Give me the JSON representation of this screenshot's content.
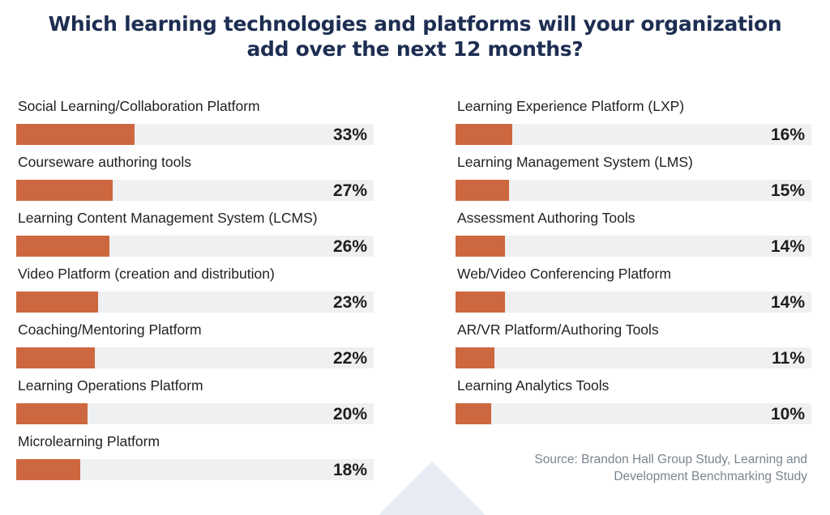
{
  "title": {
    "line1": "Which learning technologies and platforms will your organization",
    "line2": "add over the next 12 months?"
  },
  "colors": {
    "bar": "#cd673f",
    "track": "#eff0f2",
    "title": "#1d2e52",
    "source": "#7a858e"
  },
  "left": [
    {
      "label": "Social Learning/Collaboration Platform",
      "value": 33,
      "pct": "33%"
    },
    {
      "label": "Courseware authoring tools",
      "value": 27,
      "pct": "27%"
    },
    {
      "label": "Learning Content Management System (LCMS)",
      "value": 26,
      "pct": "26%"
    },
    {
      "label": "Video Platform (creation and distribution)",
      "value": 23,
      "pct": "23%"
    },
    {
      "label": "Coaching/Mentoring Platform",
      "value": 22,
      "pct": "22%"
    },
    {
      "label": "Learning Operations Platform",
      "value": 20,
      "pct": "20%"
    },
    {
      "label": "Microlearning Platform",
      "value": 18,
      "pct": "18%"
    }
  ],
  "right": [
    {
      "label": "Learning Experience Platform (LXP)",
      "value": 16,
      "pct": "16%"
    },
    {
      "label": "Learning Management System (LMS)",
      "value": 15,
      "pct": "15%"
    },
    {
      "label": "Assessment Authoring Tools",
      "value": 14,
      "pct": "14%"
    },
    {
      "label": "Web/Video Conferencing Platform",
      "value": 14,
      "pct": "14%"
    },
    {
      "label": "AR/VR Platform/Authoring Tools",
      "value": 11,
      "pct": "11%"
    },
    {
      "label": "Learning Analytics Tools",
      "value": 10,
      "pct": "10%"
    }
  ],
  "source": {
    "line1": "Source: Brandon Hall Group Study, Learning and",
    "line2": "Development Benchmarking Study"
  },
  "chart_data": {
    "type": "bar",
    "orientation": "horizontal",
    "title": "Which learning technologies and platforms will your organization add over the next 12 months?",
    "categories": [
      "Social Learning/Collaboration Platform",
      "Courseware authoring tools",
      "Learning Content Management System (LCMS)",
      "Video Platform (creation and distribution)",
      "Coaching/Mentoring Platform",
      "Learning Operations Platform",
      "Microlearning Platform",
      "Learning Experience Platform (LXP)",
      "Learning Management System (LMS)",
      "Assessment Authoring Tools",
      "Web/Video Conferencing Platform",
      "AR/VR Platform/Authoring Tools",
      "Learning Analytics Tools"
    ],
    "values": [
      33,
      27,
      26,
      23,
      22,
      20,
      18,
      16,
      15,
      14,
      14,
      11,
      10
    ],
    "unit": "%",
    "xlabel": "",
    "ylabel": "",
    "xlim": [
      0,
      100
    ],
    "grid": false,
    "legend": null,
    "annotation": "Source: Brandon Hall Group Study, Learning and Development Benchmarking Study"
  }
}
